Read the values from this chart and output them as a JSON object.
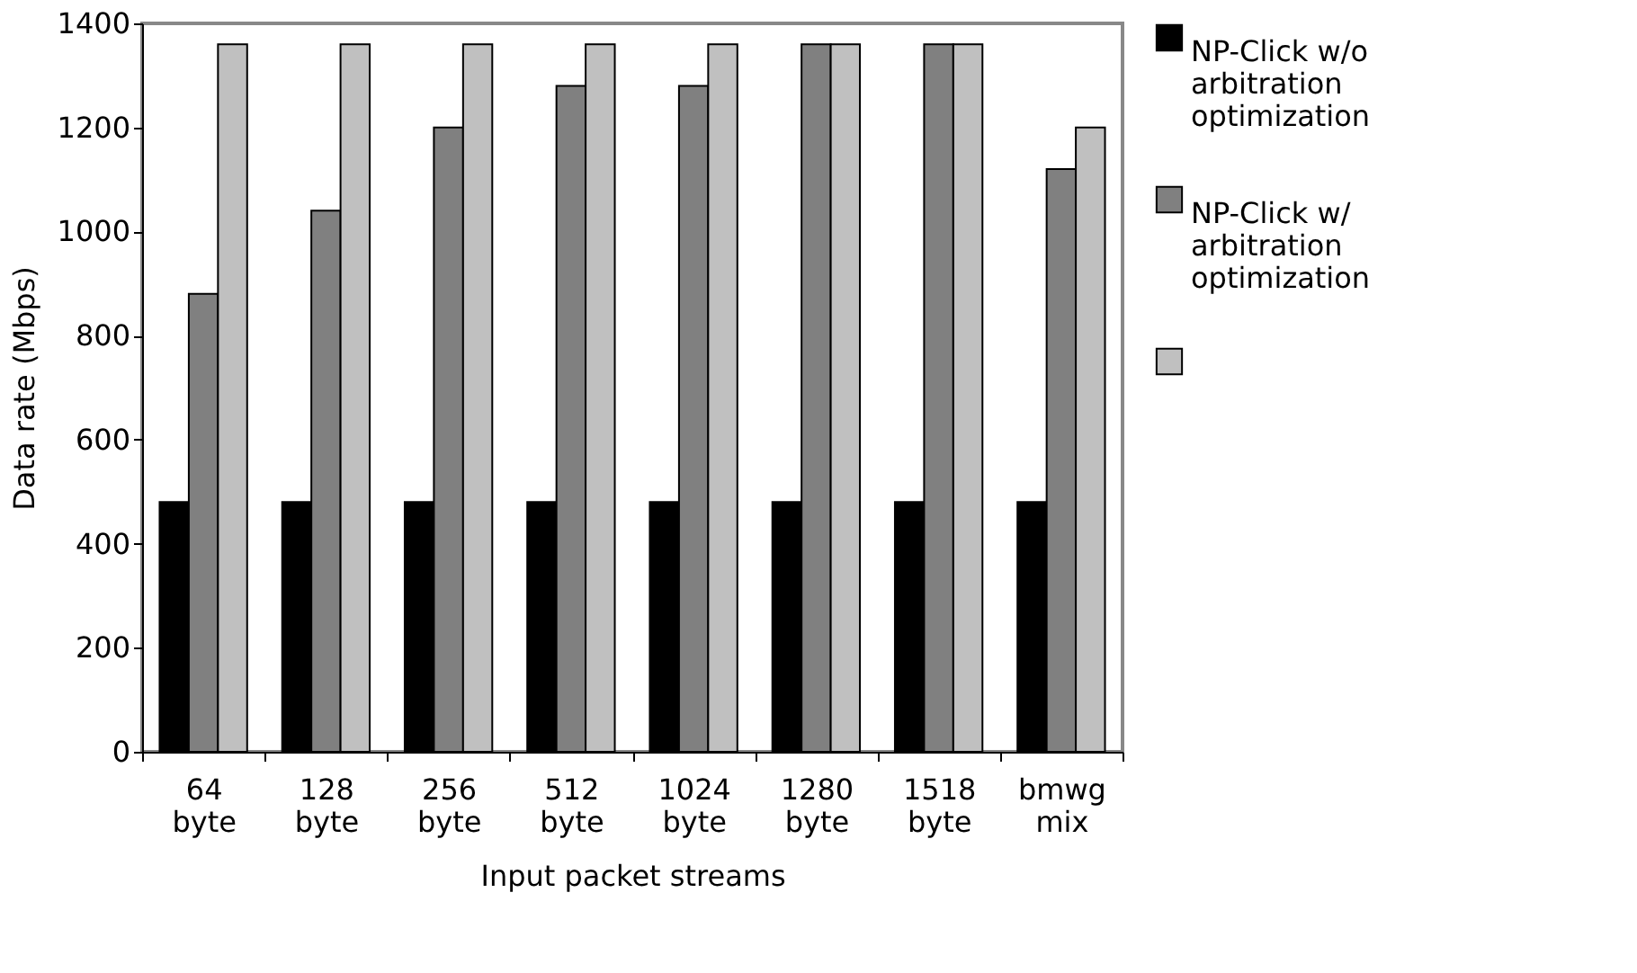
{
  "chart_data": {
    "type": "bar",
    "xlabel": "Input packet streams",
    "ylabel": "Data rate (Mbps)",
    "categories": [
      "64 byte",
      "128 byte",
      "256 byte",
      "512 byte",
      "1024 byte",
      "1280 byte",
      "1518 byte",
      "bmwg mix"
    ],
    "series": [
      {
        "name": "NP-Click w/o arbitration optimization",
        "color": "#000000",
        "values": [
          480,
          480,
          480,
          480,
          480,
          480,
          480,
          480
        ]
      },
      {
        "name": "NP-Click w/ arbitration optimization",
        "color": "#808080",
        "values": [
          880,
          1040,
          1200,
          1280,
          1280,
          1360,
          1360,
          1120
        ]
      },
      {
        "color": "#c0c0c0",
        "values": [
          1360,
          1360,
          1360,
          1360,
          1360,
          1360,
          1360,
          1200
        ]
      }
    ],
    "ylim": [
      0,
      1400
    ],
    "yticks": [
      0,
      200,
      400,
      600,
      800,
      1000,
      1200,
      1400
    ],
    "grid": false,
    "legend": "right"
  }
}
